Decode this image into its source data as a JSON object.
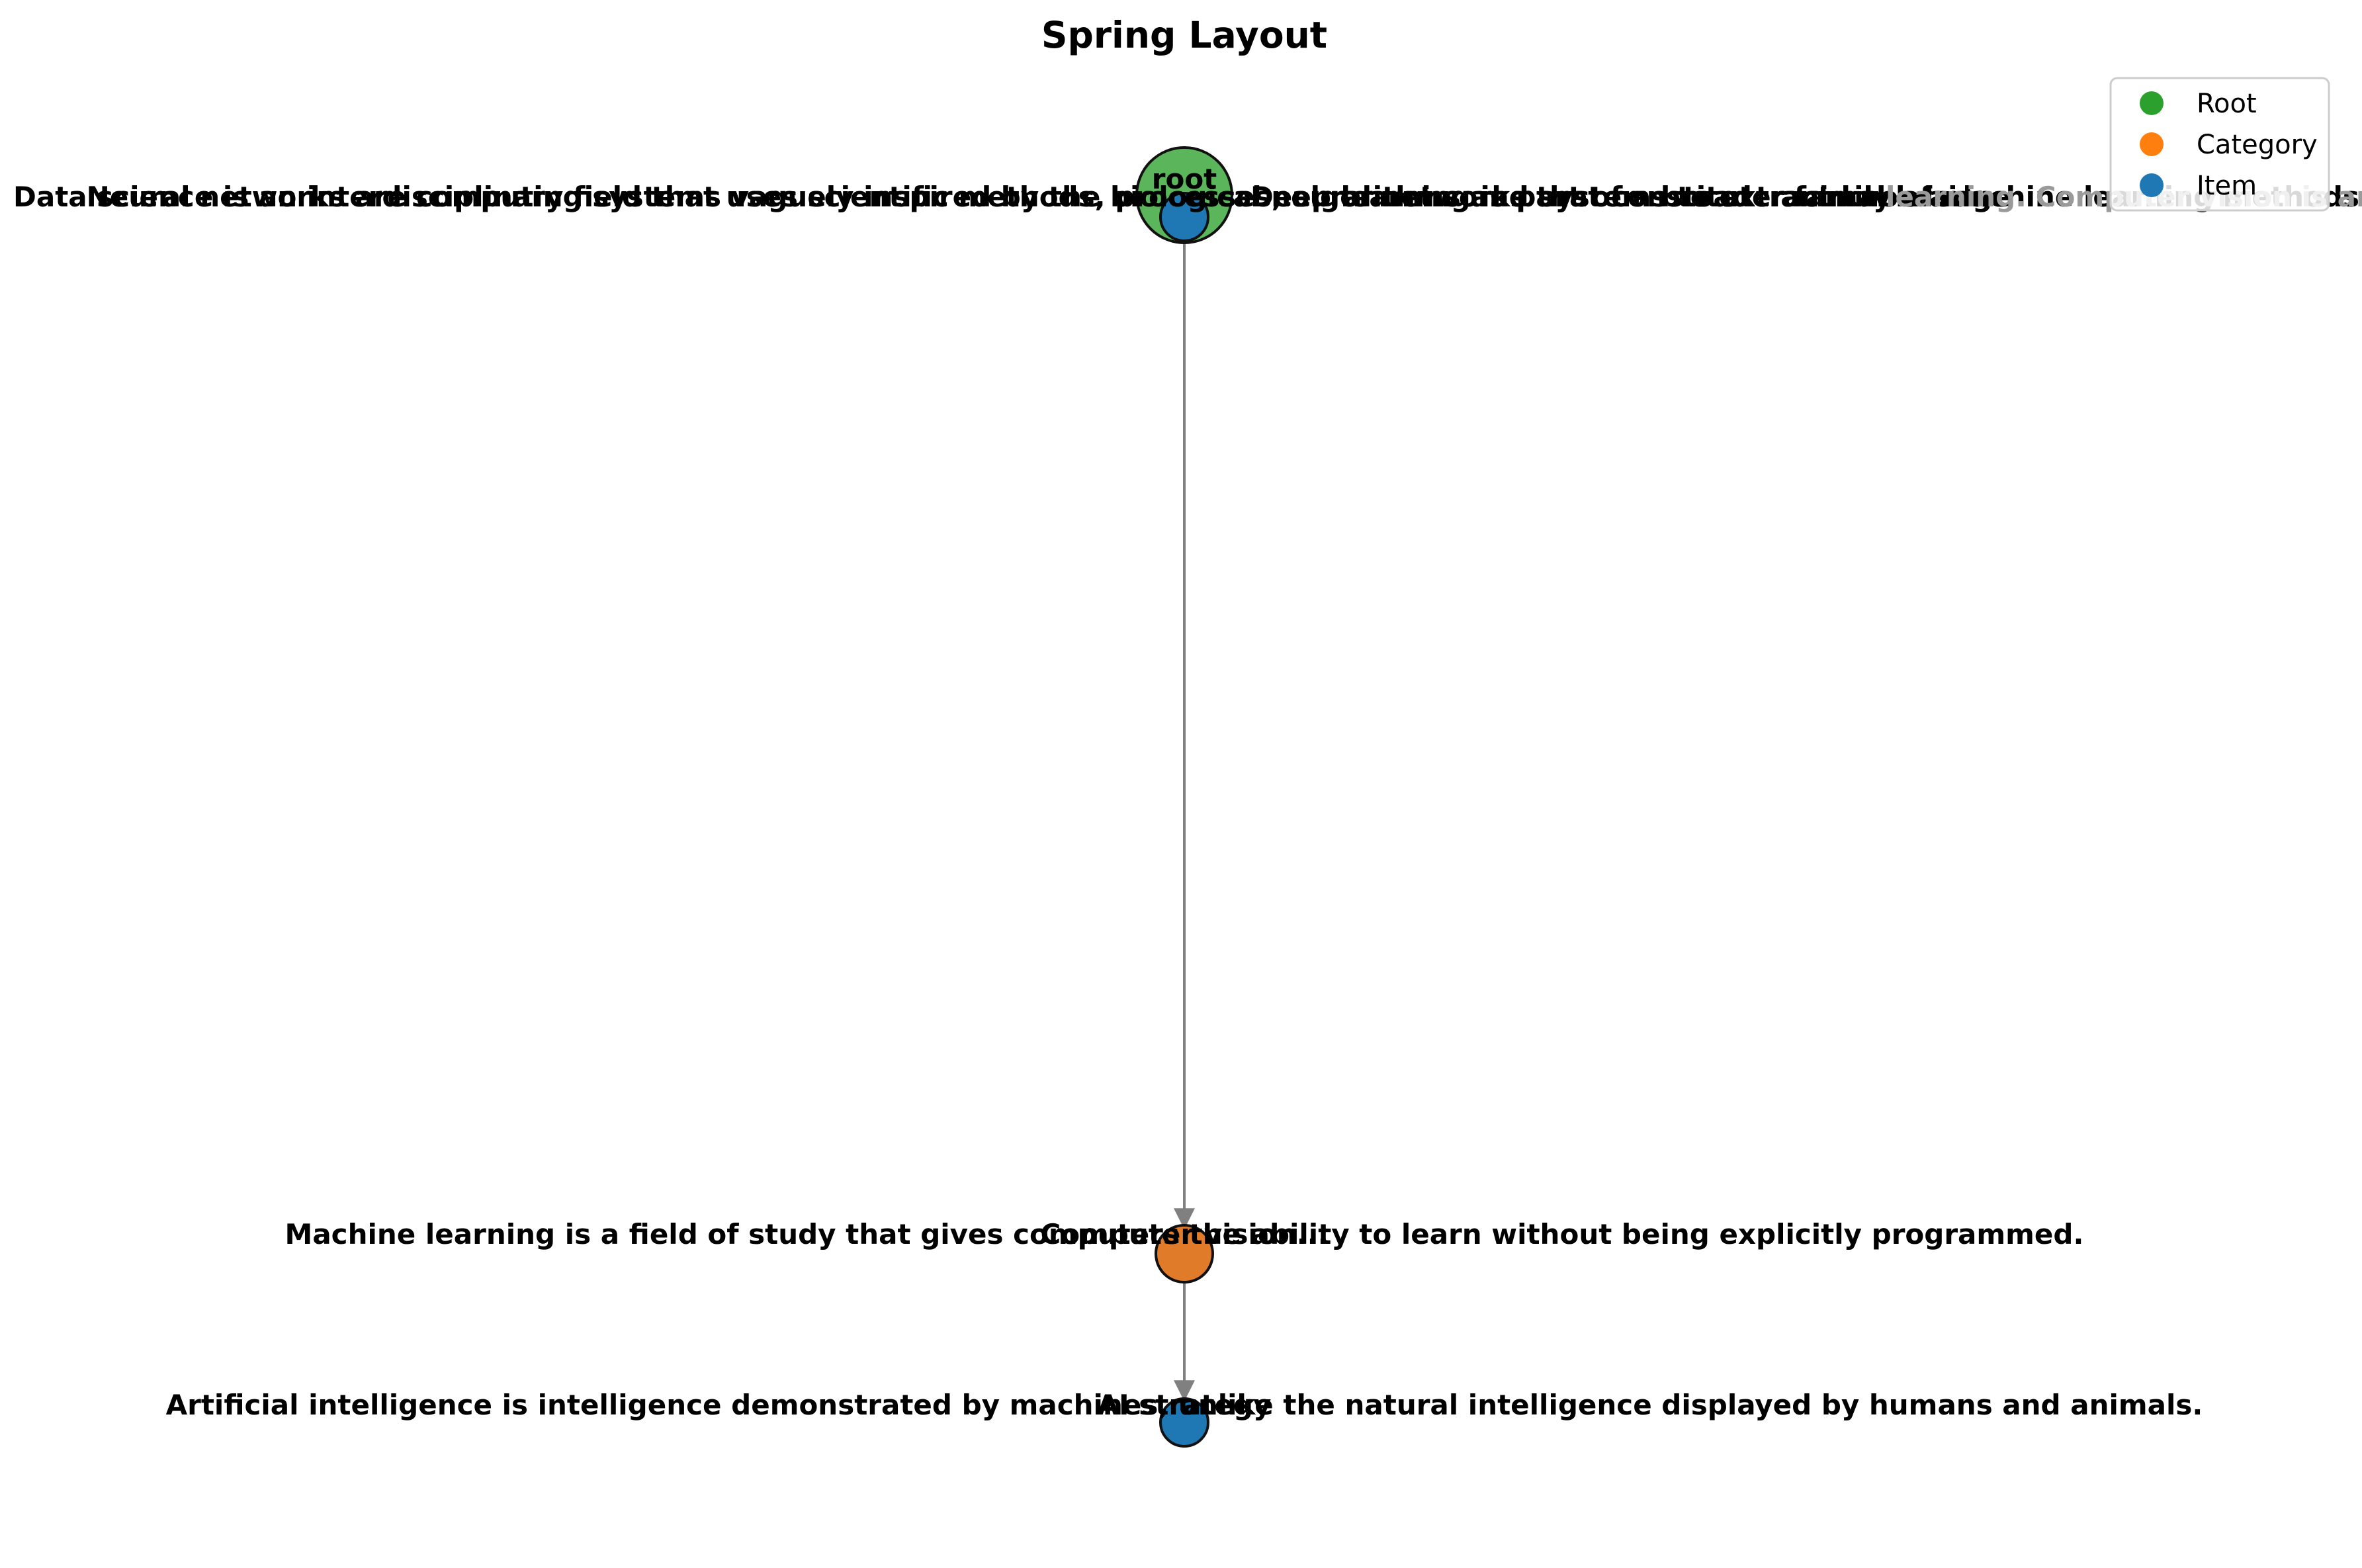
{
  "title": "Spring Layout",
  "legend": [
    {
      "label": "Root",
      "color": "#2ca02c"
    },
    {
      "label": "Category",
      "color": "#ff7f0e"
    },
    {
      "label": "Item",
      "color": "#1f77b4"
    }
  ],
  "nodes": {
    "root": {
      "label": "root",
      "color": "#5bb55b"
    },
    "category": {
      "color": "#e07b2a"
    },
    "item_top": {
      "color": "#1f77b4"
    },
    "item_bottom": {
      "color": "#1f77b4"
    }
  },
  "overlap_labels": {
    "top_left": "Data science is an interdisciplinary field that uses scientific methods, processes, algorithms and systems to extract knowledge",
    "top_mid": "Neural networks are computing systems vaguely inspired by the biological neural networks that constitute animal brains.",
    "top_right": "Deep learning is part of a broader family of machine learning methods based on artificial neural networks with representation",
    "top_tail": "learning. Computer vision is an interdisciplinary scientific field that deals with how computers can gain high-level understanding from images or data",
    "middle": "Machine learning is a field of study that gives computers the ability to learn without being explicitly programmed.",
    "middle_overlap": "Computer vision...",
    "bottom": "Artificial intelligence is intelligence demonstrated by machines, unlike the natural intelligence displayed by humans and animals.",
    "bottom_overlap": "AI strategy"
  }
}
